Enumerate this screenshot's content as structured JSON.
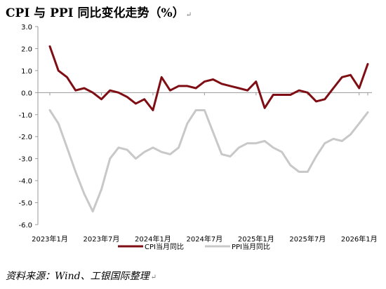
{
  "header": {
    "title": "CPI 与 PPI 同比变化走势（%）",
    "edit_mark": "↵"
  },
  "footer": {
    "source": "资料来源：Wind、工银国际整理",
    "edit_mark": "↵"
  },
  "chart_data": {
    "type": "line",
    "title": "CPI 与 PPI 同比变化走势（%）",
    "ylim": [
      -6.0,
      3.0
    ],
    "yticks": [
      "3.0",
      "2.0",
      "1.0",
      "0.0",
      "-1.0",
      "-2.0",
      "-3.0",
      "-4.0",
      "-5.0",
      "-6.0"
    ],
    "xtick_labels": [
      "2023年1月",
      "2023年7月",
      "2024年1月",
      "2024年7月",
      "2025年1月",
      "2025年7月",
      "2026年1月"
    ],
    "xtick_index": [
      0,
      6,
      12,
      18,
      24,
      30,
      36
    ],
    "n_points": 38,
    "grid": false,
    "legend_position": "bottom-center",
    "series": [
      {
        "name": "CPI当月同比",
        "color": "#7f0d14",
        "values": [
          2.1,
          1.0,
          0.7,
          0.1,
          0.2,
          0.0,
          -0.3,
          0.1,
          0.0,
          -0.2,
          -0.5,
          -0.3,
          -0.8,
          0.7,
          0.1,
          0.3,
          0.3,
          0.2,
          0.5,
          0.6,
          0.4,
          0.3,
          0.2,
          0.1,
          0.5,
          -0.7,
          -0.1,
          -0.1,
          -0.1,
          0.1,
          0.0,
          -0.4,
          -0.3,
          0.2,
          0.7,
          0.8,
          0.2,
          1.3
        ]
      },
      {
        "name": "PPI当月同比",
        "color": "#c8c8c8",
        "values": [
          -0.8,
          -1.4,
          -2.5,
          -3.6,
          -4.6,
          -5.4,
          -4.4,
          -3.0,
          -2.5,
          -2.6,
          -3.0,
          -2.7,
          -2.5,
          -2.7,
          -2.8,
          -2.5,
          -1.4,
          -0.8,
          -0.8,
          -1.8,
          -2.8,
          -2.9,
          -2.5,
          -2.3,
          -2.3,
          -2.2,
          -2.5,
          -2.7,
          -3.3,
          -3.6,
          -3.6,
          -2.9,
          -2.3,
          -2.1,
          -2.2,
          -1.9,
          -1.4,
          -0.9
        ]
      }
    ]
  }
}
